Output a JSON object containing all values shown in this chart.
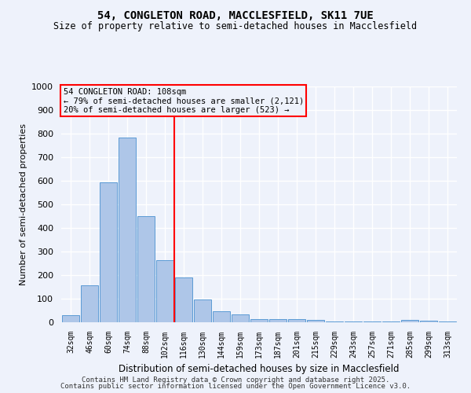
{
  "title1": "54, CONGLETON ROAD, MACCLESFIELD, SK11 7UE",
  "title2": "Size of property relative to semi-detached houses in Macclesfield",
  "xlabel": "Distribution of semi-detached houses by size in Macclesfield",
  "ylabel": "Number of semi-detached properties",
  "categories": [
    "32sqm",
    "46sqm",
    "60sqm",
    "74sqm",
    "88sqm",
    "102sqm",
    "116sqm",
    "130sqm",
    "144sqm",
    "159sqm",
    "173sqm",
    "187sqm",
    "201sqm",
    "215sqm",
    "229sqm",
    "243sqm",
    "257sqm",
    "271sqm",
    "285sqm",
    "299sqm",
    "313sqm"
  ],
  "values": [
    30,
    158,
    593,
    783,
    450,
    265,
    190,
    98,
    48,
    33,
    15,
    13,
    13,
    10,
    5,
    4,
    3,
    3,
    10,
    8,
    3
  ],
  "bar_color": "#aec6e8",
  "bar_edge_color": "#5b9bd5",
  "vline_x": 5.5,
  "vline_color": "red",
  "annotation_line1": "54 CONGLETON ROAD: 108sqm",
  "annotation_line2": "← 79% of semi-detached houses are smaller (2,121)",
  "annotation_line3": "20% of semi-detached houses are larger (523) →",
  "annotation_box_color": "red",
  "ylim": [
    0,
    1000
  ],
  "yticks": [
    0,
    100,
    200,
    300,
    400,
    500,
    600,
    700,
    800,
    900,
    1000
  ],
  "footer1": "Contains HM Land Registry data © Crown copyright and database right 2025.",
  "footer2": "Contains public sector information licensed under the Open Government Licence v3.0.",
  "bg_color": "#eef2fb",
  "grid_color": "#ffffff"
}
